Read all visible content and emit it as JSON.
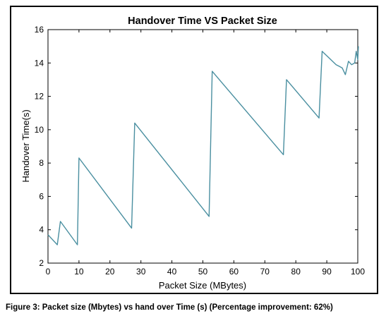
{
  "chart_data": {
    "type": "line",
    "title": "Handover Time VS Packet Size",
    "xlabel": "Packet Size (MBytes)",
    "ylabel": "Handover Time(s)",
    "xlim": [
      0,
      100
    ],
    "ylim": [
      2,
      16
    ],
    "xticks": [
      0,
      10,
      20,
      30,
      40,
      50,
      60,
      70,
      80,
      90,
      100
    ],
    "yticks": [
      2,
      4,
      6,
      8,
      10,
      12,
      14,
      16
    ],
    "grid": false,
    "series_color": "#4a8fa0",
    "series": [
      {
        "x": [
          0,
          3,
          4,
          9.5,
          10,
          27,
          28,
          52,
          53,
          76,
          77,
          87.5,
          88.5,
          93,
          94,
          95,
          96,
          97,
          98,
          99,
          99.5,
          100,
          100.2
        ],
        "y": [
          3.7,
          3.1,
          4.5,
          3.1,
          8.3,
          4.1,
          10.4,
          4.8,
          13.5,
          8.5,
          13.0,
          10.7,
          14.7,
          13.9,
          13.8,
          13.7,
          13.3,
          14.1,
          13.9,
          14.0,
          14.7,
          14.2,
          15.0
        ]
      }
    ]
  },
  "caption": "Figure 3: Packet size (Mbytes) vs hand over Time (s) (Percentage improvement: 62%)"
}
